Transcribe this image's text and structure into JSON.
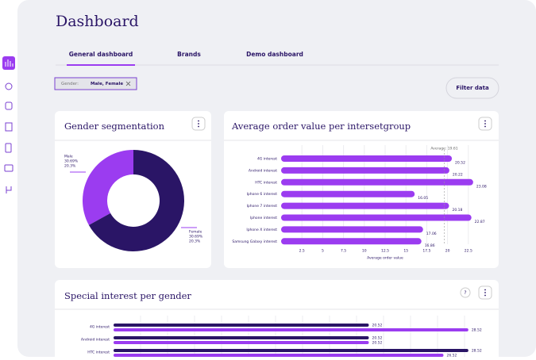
{
  "header": {
    "title": "Dashboard"
  },
  "tabs": [
    "General dashboard",
    "Brands",
    "Demo dashboard"
  ],
  "filter": {
    "label": "Gender:",
    "value": "Male, Female",
    "button": "Filter data"
  },
  "chart_data": [
    {
      "type": "pie",
      "title": "Gender segmentation",
      "categories": [
        "Male",
        "Female"
      ],
      "values": [
        33,
        67
      ],
      "colors": [
        "#9b3cf0",
        "#2a1566"
      ],
      "annotations": [
        [
          "30.69%",
          "20.3%"
        ],
        [
          "30.69%",
          "20.3%"
        ]
      ]
    },
    {
      "type": "hbar",
      "title": "Average order value per intersetgroup",
      "categories": [
        "4G interest",
        "Android interest",
        "HTC interest",
        "Iphone 6 interest",
        "Iphone 7 interest",
        "Iphone interest",
        "Iphone X interest",
        "Samsung Galaxy interest"
      ],
      "values": [
        20.52,
        20.22,
        23.08,
        16.05,
        20.18,
        22.87,
        17.06,
        16.86
      ],
      "color": "#9b3cf0",
      "xlim": [
        0,
        25
      ],
      "xticks": [
        2.5,
        5,
        7.5,
        10,
        12.5,
        15,
        17.5,
        20,
        22.5
      ],
      "xlabel": "Average order value",
      "average": {
        "value": 19.61,
        "label": "Average: 19.61"
      },
      "grid": true
    },
    {
      "type": "hbar",
      "title": "Special interest per gender",
      "categories": [
        "4G interest",
        "Android interest",
        "HTC interest"
      ],
      "series": [
        {
          "color": "#2a1566",
          "values": [
            20.52,
            20.52,
            28.52
          ]
        },
        {
          "color": "#9b3cf0",
          "values": [
            28.52,
            20.52,
            26.52
          ]
        }
      ],
      "xlim": [
        0,
        30
      ],
      "grid": true
    }
  ]
}
